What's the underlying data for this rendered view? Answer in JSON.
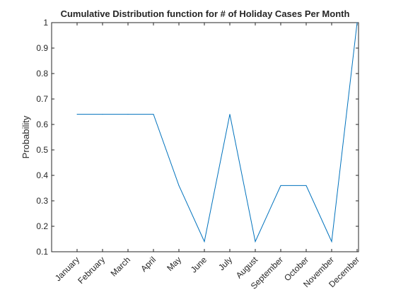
{
  "chart_data": {
    "type": "line",
    "title": "Cumulative Distribution function for # of Holiday Cases Per Month",
    "xlabel": "",
    "ylabel": "Probability",
    "categories": [
      "January",
      "February",
      "March",
      "April",
      "May",
      "June",
      "July",
      "August",
      "September",
      "October",
      "November",
      "December"
    ],
    "series": [
      {
        "values": [
          0.64,
          0.64,
          0.64,
          0.64,
          0.36,
          0.14,
          0.64,
          0.14,
          0.36,
          0.36,
          0.14,
          1.0
        ]
      }
    ],
    "ylim": [
      0.1,
      1
    ],
    "yticks": [
      "0.1",
      "0.2",
      "0.3",
      "0.4",
      "0.5",
      "0.6",
      "0.7",
      "0.8",
      "0.9",
      "1"
    ],
    "grid": false,
    "line_color": "#0072BD",
    "axis_color": "#262626"
  }
}
